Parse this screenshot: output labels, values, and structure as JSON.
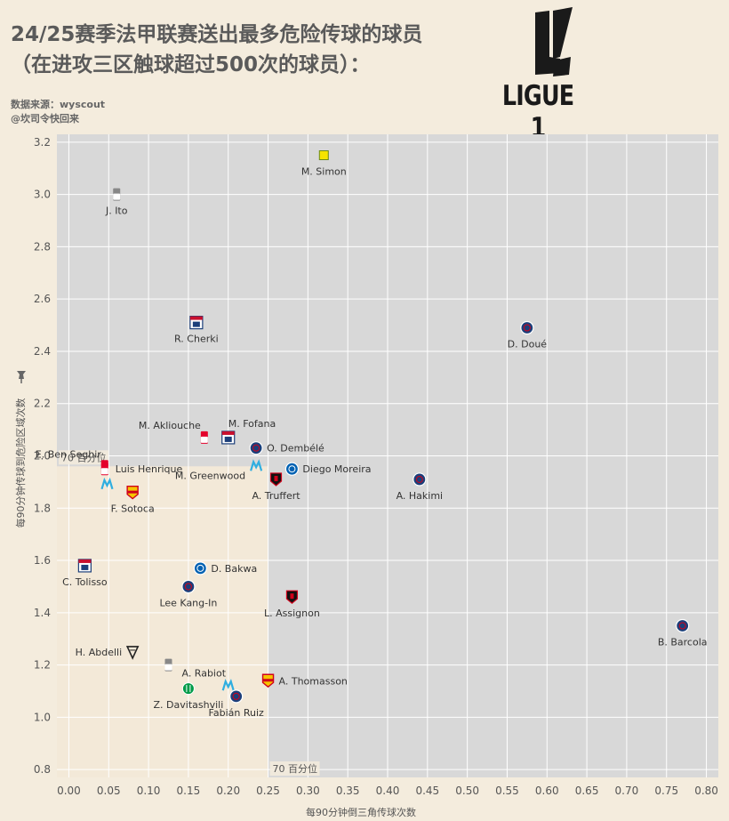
{
  "header": {
    "title_line1": "24/25赛季法甲联赛送出最多危险传球的球员",
    "title_line2": "（在进攻三区触球超过500次的球员）：",
    "source_line1": "数据来源：wyscout",
    "source_line2": "@坎司令快回来"
  },
  "logo": {
    "text": "LIGUE 1",
    "icon": "ligue1-logo"
  },
  "colors": {
    "plot_bg": "#d8d8d8",
    "quadrant_bg": "#f3e9d8",
    "page_bg": "#f4ecdd",
    "grid": "#ffffff",
    "psg": "#1c3f7a",
    "lyon": "#c8102e",
    "monaco": "#e4002b",
    "marseille": "#2faee0",
    "rennes": "#d0021b",
    "lens": "#f6c400",
    "strasbourg": "#0061b2",
    "nantes": "#f5e400",
    "saint_etienne": "#009b48",
    "angers": "#222222"
  },
  "chart_data": {
    "type": "scatter",
    "title": "24/25赛季法甲联赛送出最多危险传球的球员",
    "xlabel": "每90分钟倒三角传球次数",
    "ylabel": "每90分钟传球到危险区域次数",
    "xlim": [
      -0.015,
      0.815
    ],
    "ylim": [
      0.77,
      3.23
    ],
    "xticks": [
      "0.00",
      "0.05",
      "0.10",
      "0.15",
      "0.20",
      "0.25",
      "0.30",
      "0.35",
      "0.40",
      "0.45",
      "0.50",
      "0.55",
      "0.60",
      "0.65",
      "0.70",
      "0.75",
      "0.80"
    ],
    "yticks": [
      "0.8",
      "1.0",
      "1.2",
      "1.4",
      "1.6",
      "1.8",
      "2.0",
      "2.2",
      "2.4",
      "2.6",
      "2.8",
      "3.0",
      "3.2"
    ],
    "grid": true,
    "percentile_x": {
      "value": 0.25,
      "label": "70 百分位"
    },
    "percentile_y": {
      "value": 1.96,
      "label": "70 百分位"
    },
    "points": [
      {
        "name": "M. Simon",
        "x": 0.32,
        "y": 3.15,
        "club": "nantes",
        "label_pos": "below"
      },
      {
        "name": "J. Ito",
        "x": 0.06,
        "y": 3.0,
        "club": "reims",
        "label_pos": "below"
      },
      {
        "name": "R. Cherki",
        "x": 0.16,
        "y": 2.51,
        "club": "lyon",
        "label_pos": "below"
      },
      {
        "name": "D. Doué",
        "x": 0.575,
        "y": 2.49,
        "club": "psg",
        "label_pos": "below"
      },
      {
        "name": "M. Akliouche",
        "x": 0.17,
        "y": 2.07,
        "club": "monaco",
        "label_pos": "above-left"
      },
      {
        "name": "M. Fofana",
        "x": 0.2,
        "y": 2.07,
        "club": "lyon",
        "label_pos": "above-right"
      },
      {
        "name": "E. Ben Seghir",
        "x": 0.045,
        "y": 1.96,
        "club": "monaco",
        "label_pos": "above-left"
      },
      {
        "name": "O. Dembélé",
        "x": 0.235,
        "y": 2.03,
        "club": "psg",
        "label_pos": "right"
      },
      {
        "name": "Luis Henrique",
        "x": 0.045,
        "y": 1.95,
        "club": "monaco",
        "label_pos": "right"
      },
      {
        "name": "Diego Moreira",
        "x": 0.28,
        "y": 1.95,
        "club": "strasbourg",
        "label_pos": "right"
      },
      {
        "name": "M. Greenwood",
        "x": 0.235,
        "y": 1.96,
        "club": "marseille",
        "label_pos": "below-left"
      },
      {
        "name": "A. Truffert",
        "x": 0.26,
        "y": 1.91,
        "club": "rennes",
        "label_pos": "below"
      },
      {
        "name": "A. Hakimi",
        "x": 0.44,
        "y": 1.91,
        "club": "psg",
        "label_pos": "below"
      },
      {
        "name": "F. Sotoca",
        "x": 0.08,
        "y": 1.86,
        "club": "lens",
        "label_pos": "below"
      },
      {
        "name": "",
        "x": 0.048,
        "y": 1.89,
        "club": "marseille",
        "label_pos": "none"
      },
      {
        "name": "C. Tolisso",
        "x": 0.02,
        "y": 1.58,
        "club": "lyon",
        "label_pos": "below"
      },
      {
        "name": "D. Bakwa",
        "x": 0.165,
        "y": 1.57,
        "club": "strasbourg",
        "label_pos": "right"
      },
      {
        "name": "Lee Kang-In",
        "x": 0.15,
        "y": 1.5,
        "club": "psg",
        "label_pos": "below"
      },
      {
        "name": "L. Assignon",
        "x": 0.28,
        "y": 1.46,
        "club": "rennes",
        "label_pos": "below"
      },
      {
        "name": "B. Barcola",
        "x": 0.77,
        "y": 1.35,
        "club": "psg",
        "label_pos": "below"
      },
      {
        "name": "H. Abdelli",
        "x": 0.08,
        "y": 1.25,
        "club": "angers",
        "label_pos": "left"
      },
      {
        "name": "A. Rabiot",
        "x": 0.125,
        "y": 1.2,
        "club": "reims",
        "label_pos": "below-right"
      },
      {
        "name": "A. Thomasson",
        "x": 0.25,
        "y": 1.14,
        "club": "lens",
        "label_pos": "right"
      },
      {
        "name": "Z. Davitashvili",
        "x": 0.15,
        "y": 1.11,
        "club": "saint_etienne",
        "label_pos": "below"
      },
      {
        "name": "",
        "x": 0.2,
        "y": 1.12,
        "club": "marseille",
        "label_pos": "none"
      },
      {
        "name": "Fabián Ruiz",
        "x": 0.21,
        "y": 1.08,
        "club": "psg",
        "label_pos": "below"
      }
    ]
  }
}
